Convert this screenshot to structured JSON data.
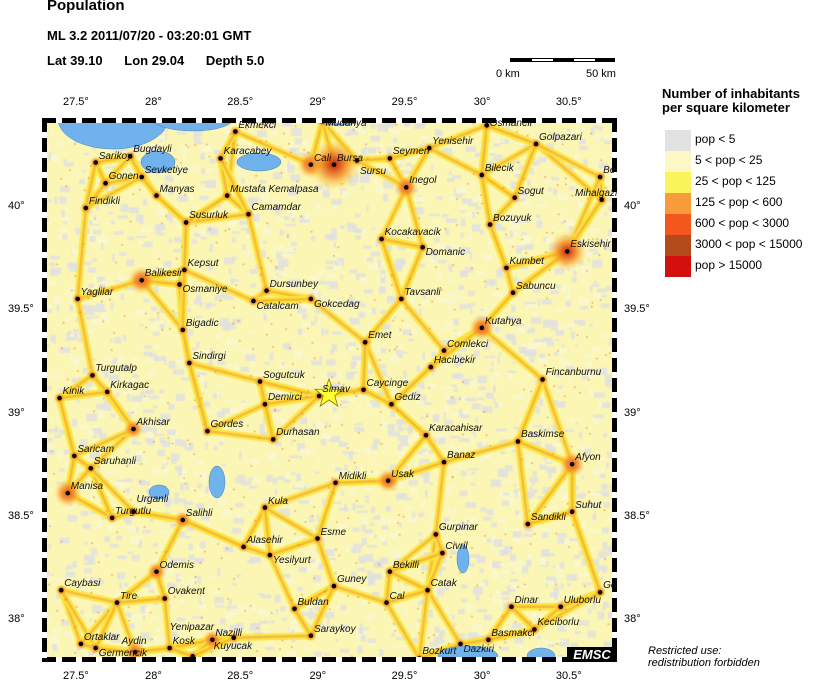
{
  "header": {
    "title": "Population",
    "event": "ML 3.2  2011/07/20 - 03:20:01 GMT",
    "lat": "Lat 39.10",
    "lon": "Lon  29.04",
    "depth": "Depth  5.0"
  },
  "scale": {
    "start": "0 km",
    "end": "50 km"
  },
  "map": {
    "extent": {
      "lon": [
        27.3,
        30.8
      ],
      "lat": [
        37.8,
        40.43
      ]
    },
    "epicenter": {
      "lat": 39.1,
      "lon": 29.04,
      "icon": "star-icon",
      "color": "#ffff33"
    },
    "lon_ticks": [
      "27.5°",
      "28°",
      "28.5°",
      "29°",
      "29.5°",
      "30°",
      "30.5°"
    ],
    "lon_tick_values": [
      27.5,
      28,
      28.5,
      29,
      29.5,
      30,
      30.5
    ],
    "lat_ticks": [
      "40°",
      "39.5°",
      "39°",
      "38.5°",
      "38°"
    ],
    "lat_tick_values": [
      40,
      39.5,
      39,
      38.5,
      38
    ],
    "water_color": "#6fb2ec",
    "cities": [
      {
        "name": "Mudanya",
        "lon": 29.0,
        "lat": 40.42
      },
      {
        "name": "Ekmekci",
        "lon": 28.47,
        "lat": 40.37
      },
      {
        "name": "Karacabey",
        "lon": 28.38,
        "lat": 40.24
      },
      {
        "name": "Mustafa Kemalpasa",
        "lon": 28.42,
        "lat": 40.06
      },
      {
        "name": "Camamdar",
        "lon": 28.55,
        "lat": 39.97
      },
      {
        "name": "Susurluk",
        "lon": 28.17,
        "lat": 39.93
      },
      {
        "name": "Manyas",
        "lon": 27.99,
        "lat": 40.06
      },
      {
        "name": "Gonen",
        "lon": 27.68,
        "lat": 40.12
      },
      {
        "name": "Sarikoy",
        "lon": 27.62,
        "lat": 40.22
      },
      {
        "name": "Bugdayli",
        "lon": 27.83,
        "lat": 40.25
      },
      {
        "name": "Sevketiye",
        "lon": 27.9,
        "lat": 40.15
      },
      {
        "name": "Findikli",
        "lon": 27.56,
        "lat": 40.0
      },
      {
        "name": "Kepsut",
        "lon": 28.16,
        "lat": 39.7
      },
      {
        "name": "Balikesir",
        "lon": 27.9,
        "lat": 39.65
      },
      {
        "name": "Osmaniye",
        "lon": 28.13,
        "lat": 39.63
      },
      {
        "name": "Yaglilar",
        "lon": 27.51,
        "lat": 39.56
      },
      {
        "name": "Dursunbey",
        "lon": 28.66,
        "lat": 39.6
      },
      {
        "name": "Catalcam",
        "lon": 28.58,
        "lat": 39.55
      },
      {
        "name": "Gokcedag",
        "lon": 28.93,
        "lat": 39.56
      },
      {
        "name": "Cali",
        "lon": 28.93,
        "lat": 40.21
      },
      {
        "name": "Bursa",
        "lon": 29.07,
        "lat": 40.21
      },
      {
        "name": "Sursu",
        "lon": 29.21,
        "lat": 40.23
      },
      {
        "name": "Seymen",
        "lon": 29.41,
        "lat": 40.24
      },
      {
        "name": "Yenisehir",
        "lon": 29.65,
        "lat": 40.29
      },
      {
        "name": "Osmaneli",
        "lon": 30.0,
        "lat": 40.4
      },
      {
        "name": "Golpazari",
        "lon": 30.3,
        "lat": 40.31
      },
      {
        "name": "Bilecik",
        "lon": 29.97,
        "lat": 40.16
      },
      {
        "name": "Inegol",
        "lon": 29.51,
        "lat": 40.1
      },
      {
        "name": "Sogut",
        "lon": 30.17,
        "lat": 40.05
      },
      {
        "name": "Mihalgazi",
        "lon": 30.7,
        "lat": 40.04
      },
      {
        "name": "Be",
        "lon": 30.69,
        "lat": 40.15
      },
      {
        "name": "Bozuyuk",
        "lon": 30.02,
        "lat": 39.92
      },
      {
        "name": "Kocakavacik",
        "lon": 29.36,
        "lat": 39.85
      },
      {
        "name": "Domanic",
        "lon": 29.61,
        "lat": 39.81
      },
      {
        "name": "Eskisehir",
        "lon": 30.49,
        "lat": 39.79
      },
      {
        "name": "Kumbet",
        "lon": 30.12,
        "lat": 39.71
      },
      {
        "name": "Sabuncu",
        "lon": 30.16,
        "lat": 39.59
      },
      {
        "name": "Tavsanli",
        "lon": 29.48,
        "lat": 39.56
      },
      {
        "name": "Kutahya",
        "lon": 29.97,
        "lat": 39.42
      },
      {
        "name": "Emet",
        "lon": 29.26,
        "lat": 39.35
      },
      {
        "name": "Comlekci",
        "lon": 29.74,
        "lat": 39.31
      },
      {
        "name": "Hacibekir",
        "lon": 29.66,
        "lat": 39.23
      },
      {
        "name": "Fincanburnu",
        "lon": 30.34,
        "lat": 39.17
      },
      {
        "name": "Caycinge",
        "lon": 29.25,
        "lat": 39.12
      },
      {
        "name": "Gediz",
        "lon": 29.42,
        "lat": 39.05
      },
      {
        "name": "Simav",
        "lon": 28.98,
        "lat": 39.09
      },
      {
        "name": "Sogutcuk",
        "lon": 28.62,
        "lat": 39.16
      },
      {
        "name": "Demirci",
        "lon": 28.65,
        "lat": 39.05
      },
      {
        "name": "Bigadic",
        "lon": 28.15,
        "lat": 39.41
      },
      {
        "name": "Sindirgi",
        "lon": 28.19,
        "lat": 39.25
      },
      {
        "name": "Turgutalp",
        "lon": 27.6,
        "lat": 39.19
      },
      {
        "name": "Kirkagac",
        "lon": 27.69,
        "lat": 39.11
      },
      {
        "name": "Kinik",
        "lon": 27.4,
        "lat": 39.08
      },
      {
        "name": "Akhisar",
        "lon": 27.85,
        "lat": 38.93
      },
      {
        "name": "Gordes",
        "lon": 28.3,
        "lat": 38.92
      },
      {
        "name": "Durhasan",
        "lon": 28.7,
        "lat": 38.88
      },
      {
        "name": "Karacahisar",
        "lon": 29.63,
        "lat": 38.9
      },
      {
        "name": "Baskimse",
        "lon": 30.19,
        "lat": 38.87
      },
      {
        "name": "Afyon",
        "lon": 30.52,
        "lat": 38.76
      },
      {
        "name": "Banaz",
        "lon": 29.74,
        "lat": 38.77
      },
      {
        "name": "Midikli",
        "lon": 29.08,
        "lat": 38.67
      },
      {
        "name": "Usak",
        "lon": 29.4,
        "lat": 38.68
      },
      {
        "name": "Saricam",
        "lon": 27.49,
        "lat": 38.8
      },
      {
        "name": "Saruhanli",
        "lon": 27.59,
        "lat": 38.74
      },
      {
        "name": "Manisa",
        "lon": 27.45,
        "lat": 38.62
      },
      {
        "name": "Turgutlu",
        "lon": 27.72,
        "lat": 38.5
      },
      {
        "name": "Urganli",
        "lon": 27.85,
        "lat": 38.53
      },
      {
        "name": "Salihli",
        "lon": 28.15,
        "lat": 38.49
      },
      {
        "name": "Kula",
        "lon": 28.65,
        "lat": 38.55
      },
      {
        "name": "Esme",
        "lon": 28.97,
        "lat": 38.4
      },
      {
        "name": "Alasehir",
        "lon": 28.52,
        "lat": 38.36
      },
      {
        "name": "Yesilyurt",
        "lon": 28.68,
        "lat": 38.32
      },
      {
        "name": "Odemis",
        "lon": 27.99,
        "lat": 38.24
      },
      {
        "name": "Caybasi",
        "lon": 27.41,
        "lat": 38.15
      },
      {
        "name": "Tire",
        "lon": 27.75,
        "lat": 38.09
      },
      {
        "name": "Ovakent",
        "lon": 28.04,
        "lat": 38.11
      },
      {
        "name": "Buldan",
        "lon": 28.83,
        "lat": 38.06
      },
      {
        "name": "Guney",
        "lon": 29.07,
        "lat": 38.17
      },
      {
        "name": "Saraykoy",
        "lon": 28.93,
        "lat": 37.93
      },
      {
        "name": "Nazilli",
        "lon": 28.33,
        "lat": 37.91
      },
      {
        "name": "Kuyucak",
        "lon": 28.46,
        "lat": 37.92
      },
      {
        "name": "Ortaklar",
        "lon": 27.53,
        "lat": 37.89
      },
      {
        "name": "Germencik",
        "lon": 27.62,
        "lat": 37.87
      },
      {
        "name": "Aydin",
        "lon": 27.86,
        "lat": 37.85
      },
      {
        "name": "Kosk",
        "lon": 28.07,
        "lat": 37.87
      },
      {
        "name": "Yenipazar",
        "lon": 28.21,
        "lat": 37.83
      },
      {
        "name": "Gurpinar",
        "lon": 29.69,
        "lat": 38.42
      },
      {
        "name": "Civril",
        "lon": 29.73,
        "lat": 38.33
      },
      {
        "name": "Bekilli",
        "lon": 29.41,
        "lat": 38.24
      },
      {
        "name": "Catak",
        "lon": 29.64,
        "lat": 38.15
      },
      {
        "name": "Cal",
        "lon": 29.39,
        "lat": 38.09
      },
      {
        "name": "Dinar",
        "lon": 30.15,
        "lat": 38.07
      },
      {
        "name": "Uluborlu",
        "lon": 30.45,
        "lat": 38.07
      },
      {
        "name": "Go",
        "lon": 30.69,
        "lat": 38.14
      },
      {
        "name": "Basmakci",
        "lon": 30.01,
        "lat": 37.91
      },
      {
        "name": "Dazkiri",
        "lon": 29.84,
        "lat": 37.89
      },
      {
        "name": "Keciborlu",
        "lon": 30.29,
        "lat": 37.96
      },
      {
        "name": "Bozkurt",
        "lon": 29.59,
        "lat": 37.82
      },
      {
        "name": "Sandikli",
        "lon": 30.25,
        "lat": 38.47
      },
      {
        "name": "Suhut",
        "lon": 30.52,
        "lat": 38.53
      }
    ]
  },
  "legend": {
    "title_line1": "Number of inhabitants",
    "title_line2": "per square kilometer",
    "items": [
      {
        "label": "pop < 5",
        "color": "#e2e2e2"
      },
      {
        "label": "5 < pop < 25",
        "color": "#fbf8c6"
      },
      {
        "label": "25 < pop < 125",
        "color": "#fbf55c"
      },
      {
        "label": "125 < pop < 600",
        "color": "#f99b3a"
      },
      {
        "label": "600 < pop < 3000",
        "color": "#f4571d"
      },
      {
        "label": "3000 < pop < 15000",
        "color": "#b24a1a"
      },
      {
        "label": "pop > 15000",
        "color": "#d40f0f"
      }
    ]
  },
  "logo": "EMSC",
  "notice": {
    "line1": "Restricted use:",
    "line2": "redistribution forbidden"
  }
}
